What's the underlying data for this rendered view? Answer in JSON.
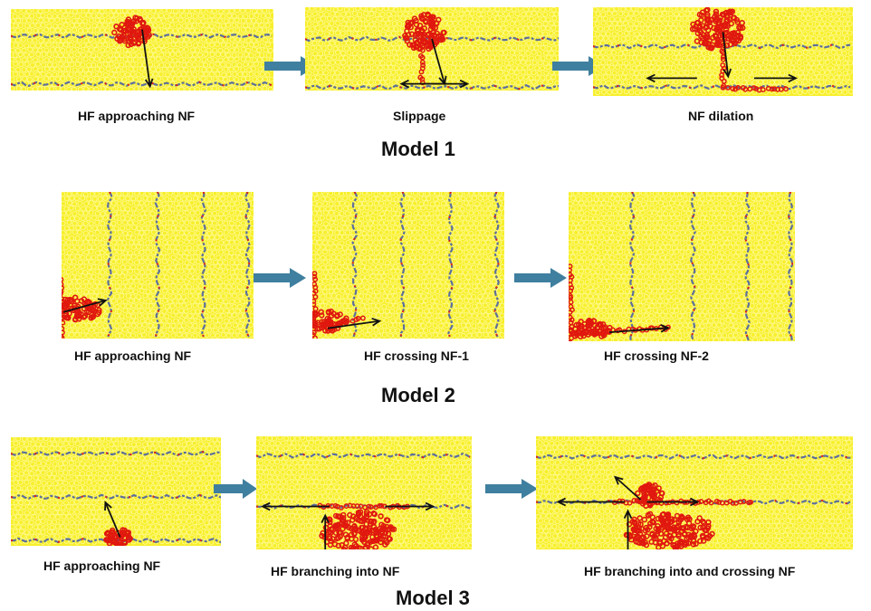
{
  "colors": {
    "rock": "#f7ef2c",
    "grain_outline": "#fffb9a",
    "fracture_blue": "#5d6f9c",
    "fracture_red": "#e02018",
    "hydrofrac": "#e0180f",
    "flow_arrow": "#3f7f9f",
    "arrow": "#111111"
  },
  "models": [
    {
      "title": "Model 1",
      "panels": [
        {
          "caption": "HF approaching NF"
        },
        {
          "caption": "Slippage"
        },
        {
          "caption": "NF dilation"
        }
      ]
    },
    {
      "title": "Model 2",
      "panels": [
        {
          "caption": "HF approaching NF"
        },
        {
          "caption": "HF crossing NF-1"
        },
        {
          "caption": "HF crossing NF-2"
        }
      ]
    },
    {
      "title": "Model 3",
      "panels": [
        {
          "caption": "HF approaching NF"
        },
        {
          "caption": "HF branching into NF"
        },
        {
          "caption": "HF branching into and crossing NF"
        }
      ]
    }
  ]
}
